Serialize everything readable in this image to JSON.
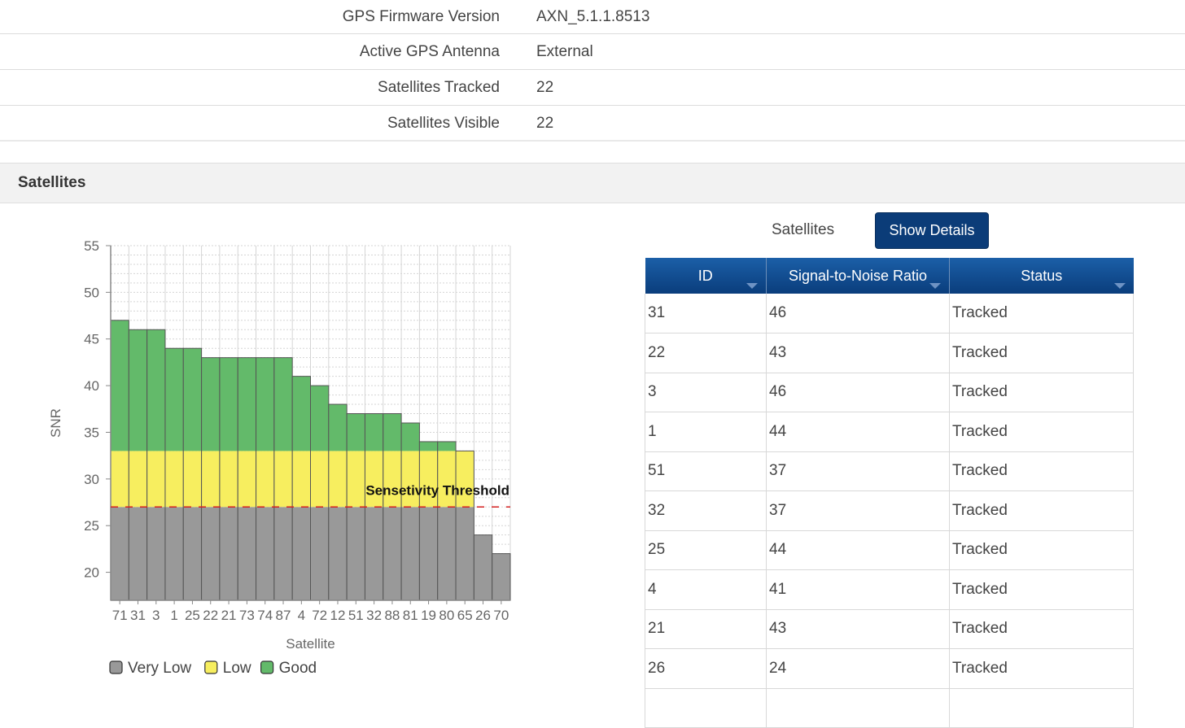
{
  "info": [
    {
      "label": "GPS Firmware Version",
      "value": "AXN_5.1.1.8513"
    },
    {
      "label": "Active GPS Antenna",
      "value": "External"
    },
    {
      "label": "Satellites Tracked",
      "value": "22"
    },
    {
      "label": "Satellites Visible",
      "value": "22"
    }
  ],
  "section": {
    "title": "Satellites"
  },
  "panel": {
    "label": "Satellites",
    "button": "Show Details"
  },
  "table": {
    "headers": [
      "ID",
      "Signal-to-Noise Ratio",
      "Status"
    ],
    "rows": [
      [
        "31",
        "46",
        "Tracked"
      ],
      [
        "22",
        "43",
        "Tracked"
      ],
      [
        "3",
        "46",
        "Tracked"
      ],
      [
        "1",
        "44",
        "Tracked"
      ],
      [
        "51",
        "37",
        "Tracked"
      ],
      [
        "32",
        "37",
        "Tracked"
      ],
      [
        "25",
        "44",
        "Tracked"
      ],
      [
        "4",
        "41",
        "Tracked"
      ],
      [
        "21",
        "43",
        "Tracked"
      ],
      [
        "26",
        "24",
        "Tracked"
      ],
      [
        "",
        "",
        ""
      ]
    ]
  },
  "chart_data": {
    "type": "bar",
    "categories": [
      "71",
      "31",
      "3",
      "1",
      "25",
      "22",
      "21",
      "73",
      "74",
      "87",
      "4",
      "72",
      "12",
      "51",
      "32",
      "88",
      "81",
      "19",
      "80",
      "65",
      "26",
      "70"
    ],
    "values": [
      47,
      46,
      46,
      44,
      44,
      43,
      43,
      43,
      43,
      43,
      41,
      40,
      38,
      37,
      37,
      37,
      36,
      34,
      34,
      33,
      24,
      22
    ],
    "ylabel": "SNR",
    "xlabel": "Satellite",
    "ylim": [
      17,
      55
    ],
    "yticks": [
      20,
      25,
      30,
      35,
      40,
      45,
      50,
      55
    ],
    "threshold": {
      "value": 27,
      "label": "Sensetivity Threshold"
    },
    "bands": [
      {
        "name": "Very Low",
        "upper": 27,
        "color": "#999999"
      },
      {
        "name": "Low",
        "upper": 33,
        "color": "#f7ee5f"
      },
      {
        "name": "Good",
        "upper": 55,
        "color": "#63ba6a"
      }
    ],
    "grid": true,
    "legend_position": "bottom-left"
  }
}
